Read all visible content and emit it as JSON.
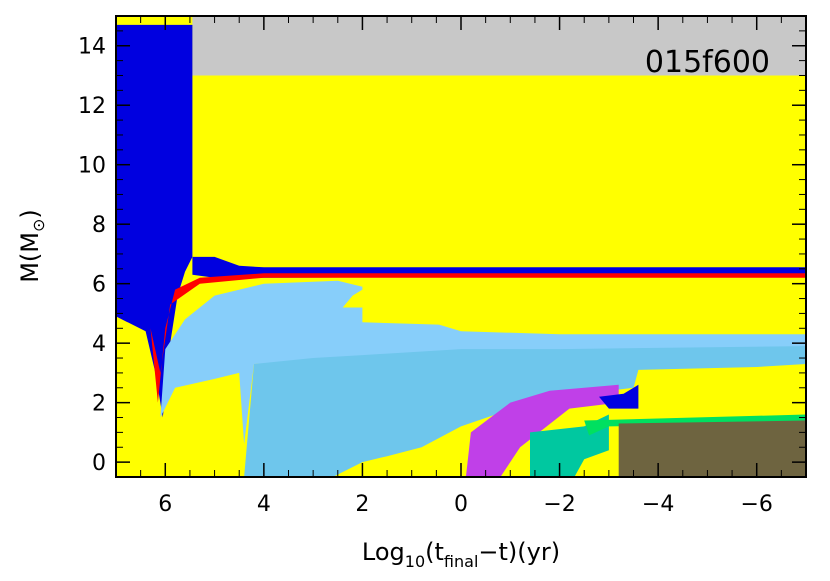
{
  "chart_data": {
    "type": "area",
    "title": "",
    "model_label": "015f600",
    "xlabel": {
      "prefix": "Log",
      "base_sub": "10",
      "open": "(t",
      "t_sub": "final",
      "rest": "−t)(yr)"
    },
    "ylabel": {
      "main": "M(M",
      "sub": "⊙",
      "close": ")"
    },
    "xlim": [
      7,
      -7
    ],
    "ylim": [
      -0.5,
      15
    ],
    "xticks": [
      6,
      4,
      2,
      0,
      -2,
      -4,
      -6
    ],
    "xtick_labels": [
      "6",
      "4",
      "2",
      "0",
      "−2",
      "−4",
      "−6"
    ],
    "yticks": [
      0,
      2,
      4,
      6,
      8,
      10,
      12,
      14
    ],
    "ytick_labels": [
      "0",
      "2",
      "4",
      "6",
      "8",
      "10",
      "12",
      "14"
    ],
    "colors": {
      "background": "#ffff00",
      "lost_mass": "#c8c8c8",
      "convective_envelope": "#0000e0",
      "surface_line": "#ff0000",
      "core_gradient_light": "#87cefa",
      "core_gradient_deep": "#00bfff",
      "core_fill": "#6ec6ec",
      "shell_purple": "#c040e8",
      "shell_teal": "#00c8a0",
      "shell_green": "#00e060",
      "inner_core": "#6e6440"
    },
    "regions": [
      {
        "name": "lost-mass",
        "color": "lost_mass",
        "points": [
          [
            5.45,
            13.0
          ],
          [
            -7,
            13.0
          ],
          [
            -7,
            15
          ],
          [
            5.45,
            15
          ]
        ]
      },
      {
        "name": "early-envelope",
        "color": "convective_envelope",
        "points": [
          [
            7,
            4.9
          ],
          [
            6.4,
            4.4
          ],
          [
            6.2,
            3.0
          ],
          [
            6.05,
            1.5
          ],
          [
            5.9,
            4.0
          ],
          [
            5.75,
            5.6
          ],
          [
            5.6,
            6.4
          ],
          [
            5.45,
            6.9
          ],
          [
            5.45,
            14.7
          ],
          [
            7,
            14.7
          ]
        ]
      },
      {
        "name": "envelope-boundary",
        "color": "convective_envelope",
        "points": [
          [
            5.45,
            6.9
          ],
          [
            5.0,
            6.9
          ],
          [
            4.5,
            6.6
          ],
          [
            4.0,
            6.55
          ],
          [
            -7,
            6.55
          ],
          [
            -7,
            6.25
          ],
          [
            4.0,
            6.2
          ],
          [
            5.0,
            6.2
          ],
          [
            5.45,
            6.3
          ]
        ]
      },
      {
        "name": "surface-red-layer",
        "color": "surface_line",
        "points": [
          [
            6.3,
            4.5
          ],
          [
            6.15,
            2.0
          ],
          [
            6.0,
            4.5
          ],
          [
            5.8,
            5.8
          ],
          [
            5.3,
            6.2
          ],
          [
            4.0,
            6.35
          ],
          [
            -7,
            6.35
          ],
          [
            -7,
            6.2
          ],
          [
            4.0,
            6.2
          ],
          [
            5.3,
            6.0
          ],
          [
            5.9,
            5.3
          ],
          [
            6.1,
            3.0
          ]
        ]
      },
      {
        "name": "radiative-gradient",
        "color": "core_gradient_light",
        "points": [
          [
            6.1,
            1.5
          ],
          [
            6.0,
            3.8
          ],
          [
            5.6,
            4.8
          ],
          [
            5.0,
            5.6
          ],
          [
            4.0,
            6.0
          ],
          [
            2.5,
            6.1
          ],
          [
            2.0,
            5.9
          ],
          [
            1.0,
            4.9
          ],
          [
            0.0,
            4.4
          ],
          [
            -2,
            4.3
          ],
          [
            -7,
            4.3
          ],
          [
            -7,
            3.7
          ],
          [
            0.0,
            3.7
          ],
          [
            2.0,
            3.5
          ],
          [
            4.2,
            3.3
          ],
          [
            4.4,
            0.6
          ],
          [
            4.5,
            3.0
          ],
          [
            5.0,
            2.8
          ],
          [
            5.8,
            2.5
          ]
        ]
      },
      {
        "name": "hydrogen-burning-core",
        "color": "core_fill",
        "points": [
          [
            4.4,
            -0.5
          ],
          [
            4.2,
            3.3
          ],
          [
            3.0,
            3.5
          ],
          [
            2.0,
            3.6
          ],
          [
            0.0,
            3.8
          ],
          [
            -2,
            3.8
          ],
          [
            -7,
            3.9
          ],
          [
            -7,
            3.3
          ],
          [
            -6,
            3.2
          ],
          [
            -3.6,
            3.1
          ],
          [
            -3.5,
            2.5
          ],
          [
            -2.5,
            2.3
          ],
          [
            -1.4,
            2.0
          ],
          [
            0.0,
            1.2
          ],
          [
            0.8,
            0.5
          ],
          [
            1.5,
            0.2
          ],
          [
            2.0,
            0.0
          ],
          [
            2.6,
            -0.5
          ]
        ]
      },
      {
        "name": "upper-yellow-zone",
        "color": "background",
        "points": [
          [
            2.0,
            6.1
          ],
          [
            -7,
            6.1
          ],
          [
            -7,
            4.4
          ],
          [
            -2,
            4.5
          ],
          [
            2.0,
            4.7
          ],
          [
            2.0,
            5.2
          ],
          [
            2.4,
            5.2
          ],
          [
            2.2,
            5.6
          ],
          [
            2.0,
            5.8
          ]
        ]
      },
      {
        "name": "helium-shell-purple",
        "color": "shell_purple",
        "points": [
          [
            -0.1,
            -0.5
          ],
          [
            -0.2,
            1.0
          ],
          [
            -0.6,
            1.5
          ],
          [
            -1.0,
            2.0
          ],
          [
            -1.8,
            2.4
          ],
          [
            -3.2,
            2.6
          ],
          [
            -3.2,
            2.0
          ],
          [
            -2.2,
            1.8
          ],
          [
            -1.2,
            0.5
          ],
          [
            -0.8,
            -0.5
          ]
        ]
      },
      {
        "name": "helium-shell-blue",
        "color": "convective_envelope",
        "points": [
          [
            -2.8,
            2.2
          ],
          [
            -3.3,
            2.3
          ],
          [
            -3.6,
            2.6
          ],
          [
            -3.6,
            1.8
          ],
          [
            -3.0,
            1.8
          ]
        ]
      },
      {
        "name": "carbon-shell-teal",
        "color": "shell_teal",
        "points": [
          [
            -1.4,
            -0.5
          ],
          [
            -1.4,
            1.0
          ],
          [
            -2.5,
            1.2
          ],
          [
            -3.0,
            1.6
          ],
          [
            -3.0,
            0.4
          ],
          [
            -2.5,
            0.1
          ],
          [
            -2.3,
            -0.5
          ]
        ]
      },
      {
        "name": "carbon-shell-green",
        "color": "shell_green",
        "points": [
          [
            -2.5,
            1.4
          ],
          [
            -7,
            1.6
          ],
          [
            -7,
            1.3
          ],
          [
            -3.0,
            1.2
          ],
          [
            -2.6,
            0.9
          ]
        ]
      },
      {
        "name": "inner-iron-core",
        "color": "inner_core",
        "points": [
          [
            -3.2,
            -0.5
          ],
          [
            -3.2,
            1.3
          ],
          [
            -7,
            1.4
          ],
          [
            -7,
            -0.5
          ]
        ]
      }
    ]
  }
}
